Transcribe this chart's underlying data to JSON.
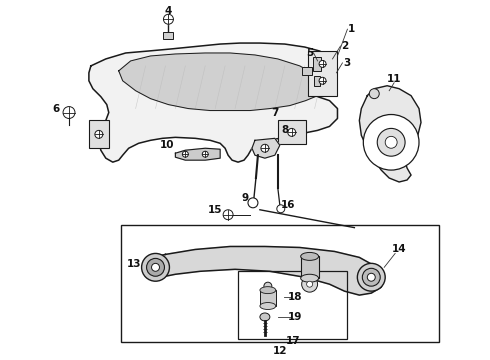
{
  "background_color": "#ffffff",
  "line_color": "#1a1a1a",
  "label_color": "#111111",
  "label_fontsize": 7.5,
  "figsize": [
    4.9,
    3.6
  ],
  "dpi": 100
}
